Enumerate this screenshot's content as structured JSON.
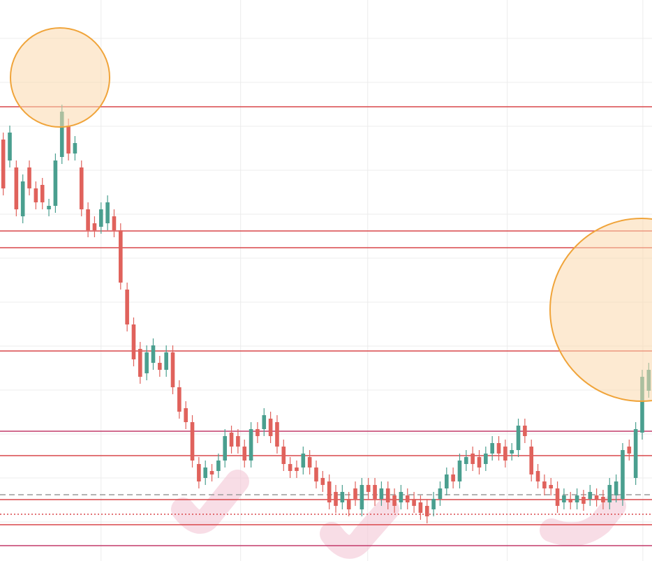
{
  "chart_data": {
    "type": "candlestick",
    "xlim": [
      -0.5,
      99.5
    ],
    "ylim": [
      0,
      804
    ],
    "xticks": [
      15,
      36.4,
      55.9,
      77.3,
      98.1
    ],
    "yticks": [
      749,
      686,
      623,
      560,
      497,
      434,
      371,
      308,
      245,
      182,
      119,
      56
    ],
    "grid": true,
    "up_color": "#4a9f8f",
    "down_color": "#e0625c",
    "levels": [
      {
        "value": 651,
        "color": "#d9474a",
        "dash": "solid"
      },
      {
        "value": 473,
        "color": "#d9474a",
        "dash": "solid"
      },
      {
        "value": 449,
        "color": "#d9474a",
        "dash": "solid"
      },
      {
        "value": 301,
        "color": "#d9474a",
        "dash": "solid"
      },
      {
        "value": 186,
        "color": "#c23a6a",
        "dash": "solid"
      },
      {
        "value": 151,
        "color": "#d9474a",
        "dash": "solid"
      },
      {
        "value": 95,
        "color": "#9a9a9a",
        "dash": "dashed"
      },
      {
        "value": 88,
        "color": "#d9474a",
        "dash": "solid"
      },
      {
        "value": 67,
        "color": "#d9474a",
        "dash": "dotted"
      },
      {
        "value": 52,
        "color": "#d9474a",
        "dash": "solid"
      },
      {
        "value": 22,
        "color": "#c23a6a",
        "dash": "solid"
      }
    ],
    "ohlc": [
      [
        604,
        614,
        524,
        534
      ],
      [
        574,
        624,
        564,
        614
      ],
      [
        564,
        574,
        494,
        504
      ],
      [
        494,
        554,
        484,
        544
      ],
      [
        564,
        574,
        524,
        534
      ],
      [
        534,
        544,
        504,
        514
      ],
      [
        539,
        549,
        504,
        514
      ],
      [
        504,
        519,
        494,
        509
      ],
      [
        509,
        584,
        499,
        574
      ],
      [
        579,
        654,
        569,
        644
      ],
      [
        624,
        634,
        574,
        584
      ],
      [
        584,
        609,
        574,
        599
      ],
      [
        564,
        574,
        494,
        504
      ],
      [
        504,
        514,
        464,
        474
      ],
      [
        484,
        494,
        464,
        474
      ],
      [
        479,
        514,
        469,
        504
      ],
      [
        484,
        524,
        474,
        514
      ],
      [
        494,
        504,
        464,
        474
      ],
      [
        474,
        484,
        389,
        399
      ],
      [
        389,
        399,
        329,
        339
      ],
      [
        339,
        349,
        279,
        289
      ],
      [
        304,
        314,
        254,
        264
      ],
      [
        269,
        309,
        259,
        299
      ],
      [
        284,
        319,
        274,
        309
      ],
      [
        284,
        294,
        264,
        274
      ],
      [
        274,
        309,
        264,
        299
      ],
      [
        299,
        309,
        239,
        249
      ],
      [
        249,
        259,
        204,
        214
      ],
      [
        219,
        229,
        189,
        199
      ],
      [
        199,
        209,
        134,
        144
      ],
      [
        139,
        149,
        104,
        114
      ],
      [
        119,
        144,
        109,
        134
      ],
      [
        129,
        139,
        114,
        124
      ],
      [
        129,
        154,
        119,
        144
      ],
      [
        144,
        189,
        134,
        179
      ],
      [
        184,
        194,
        154,
        164
      ],
      [
        179,
        189,
        154,
        164
      ],
      [
        164,
        174,
        134,
        144
      ],
      [
        144,
        199,
        134,
        189
      ],
      [
        189,
        199,
        169,
        179
      ],
      [
        189,
        219,
        179,
        209
      ],
      [
        204,
        214,
        169,
        179
      ],
      [
        199,
        209,
        154,
        164
      ],
      [
        164,
        174,
        129,
        139
      ],
      [
        139,
        149,
        119,
        129
      ],
      [
        134,
        144,
        119,
        129
      ],
      [
        134,
        164,
        124,
        154
      ],
      [
        149,
        159,
        124,
        134
      ],
      [
        134,
        144,
        104,
        114
      ],
      [
        119,
        129,
        99,
        109
      ],
      [
        114,
        124,
        74,
        84
      ],
      [
        99,
        109,
        69,
        79
      ],
      [
        84,
        109,
        74,
        99
      ],
      [
        89,
        99,
        64,
        74
      ],
      [
        104,
        114,
        79,
        89
      ],
      [
        74,
        119,
        64,
        109
      ],
      [
        109,
        119,
        89,
        99
      ],
      [
        109,
        119,
        79,
        89
      ],
      [
        89,
        114,
        79,
        104
      ],
      [
        104,
        114,
        74,
        84
      ],
      [
        94,
        104,
        69,
        79
      ],
      [
        84,
        109,
        74,
        99
      ],
      [
        94,
        104,
        74,
        84
      ],
      [
        89,
        99,
        69,
        79
      ],
      [
        84,
        94,
        59,
        69
      ],
      [
        79,
        89,
        54,
        64
      ],
      [
        74,
        99,
        64,
        89
      ],
      [
        89,
        114,
        79,
        104
      ],
      [
        104,
        134,
        94,
        124
      ],
      [
        124,
        134,
        104,
        114
      ],
      [
        114,
        154,
        104,
        144
      ],
      [
        139,
        159,
        129,
        149
      ],
      [
        154,
        164,
        129,
        139
      ],
      [
        149,
        159,
        124,
        134
      ],
      [
        139,
        164,
        129,
        154
      ],
      [
        154,
        179,
        144,
        169
      ],
      [
        169,
        179,
        144,
        154
      ],
      [
        164,
        174,
        134,
        144
      ],
      [
        154,
        169,
        144,
        159
      ],
      [
        159,
        204,
        149,
        194
      ],
      [
        194,
        204,
        169,
        179
      ],
      [
        164,
        174,
        114,
        124
      ],
      [
        129,
        139,
        104,
        114
      ],
      [
        114,
        124,
        94,
        104
      ],
      [
        109,
        119,
        94,
        104
      ],
      [
        104,
        114,
        69,
        79
      ],
      [
        84,
        104,
        74,
        94
      ],
      [
        89,
        99,
        74,
        84
      ],
      [
        84,
        104,
        74,
        94
      ],
      [
        92,
        102,
        72,
        82
      ],
      [
        89,
        109,
        79,
        99
      ],
      [
        94,
        104,
        78,
        88
      ],
      [
        92,
        102,
        74,
        84
      ],
      [
        84,
        119,
        74,
        109
      ],
      [
        94,
        124,
        84,
        114
      ],
      [
        89,
        169,
        79,
        159
      ],
      [
        164,
        174,
        144,
        154
      ],
      [
        119,
        199,
        109,
        189
      ],
      [
        184,
        274,
        174,
        264
      ],
      [
        244,
        284,
        234,
        274
      ]
    ]
  }
}
